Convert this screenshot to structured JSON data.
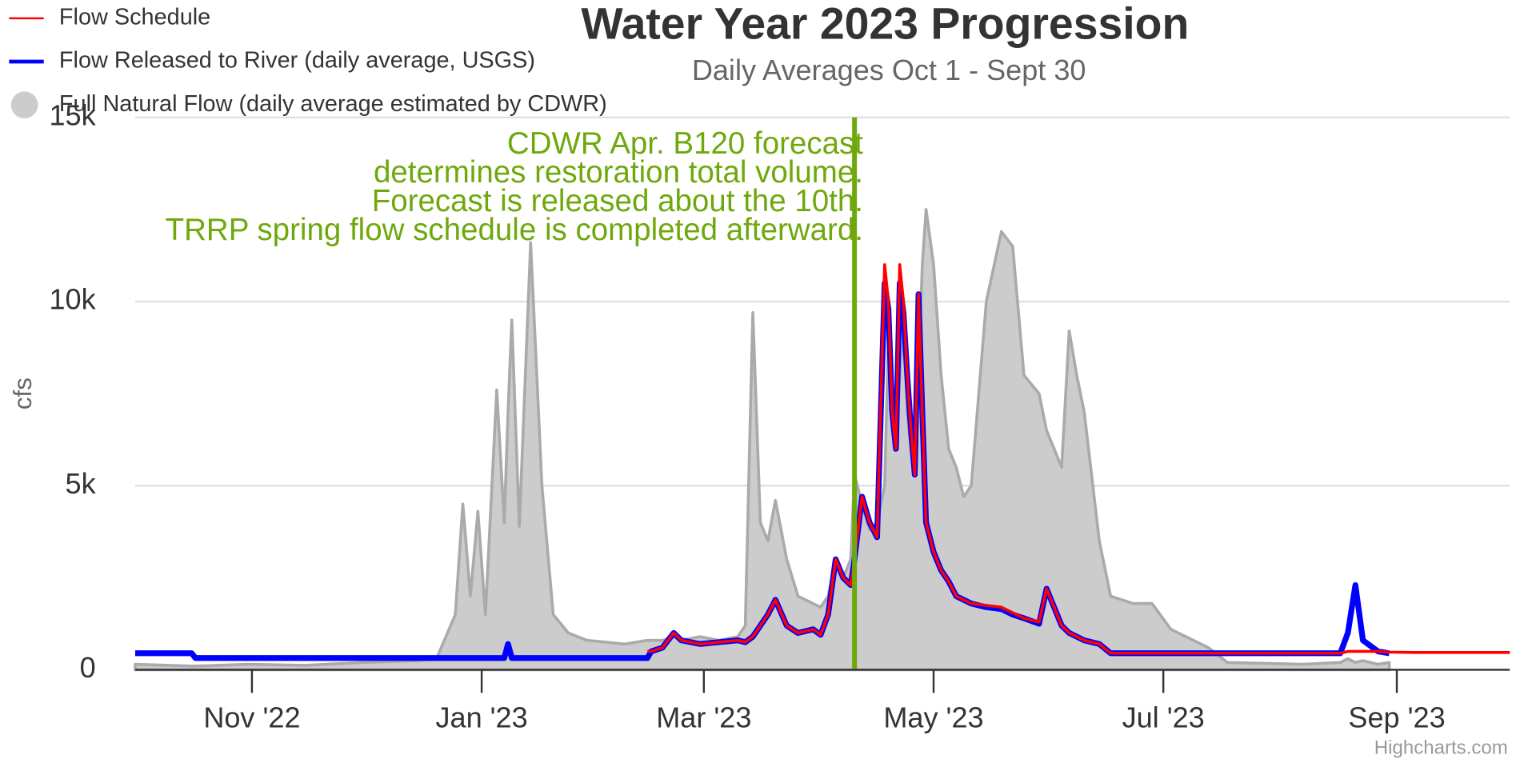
{
  "chart_data": {
    "type": "line",
    "title": "Water Year 2023 Progression",
    "subtitle": "Daily Averages Oct 1 - Sept 30",
    "y_axis_label": "cfs",
    "credits": "Highcharts.com",
    "legend_position": "top-left",
    "grid": true,
    "xlim": [
      0,
      365
    ],
    "xticks": [
      {
        "value": 31,
        "label": "Nov '22"
      },
      {
        "value": 92,
        "label": "Jan '23"
      },
      {
        "value": 151,
        "label": "Mar '23"
      },
      {
        "value": 212,
        "label": "May '23"
      },
      {
        "value": 273,
        "label": "Jul '23"
      },
      {
        "value": 335,
        "label": "Sep '23"
      }
    ],
    "ylim": [
      0,
      15000
    ],
    "yticks": [
      0,
      {
        "value": 5000,
        "label": "5k"
      },
      {
        "value": 10000,
        "label": "10k"
      },
      {
        "value": 15000,
        "label": "15k"
      }
    ],
    "plot_lines": [
      {
        "value": 191,
        "color": "#6fa80d",
        "label": [
          "CDWR Apr. B120 forecast",
          "determines restoration total volume.",
          "Forecast is released about the 10th.",
          "TRRP spring flow schedule is completed afterward."
        ]
      }
    ],
    "x": [
      0,
      15,
      16,
      30,
      45,
      60,
      75,
      80,
      85,
      87,
      89,
      91,
      93,
      96,
      98,
      99,
      100,
      102,
      105,
      108,
      111,
      115,
      120,
      130,
      136,
      137,
      140,
      143,
      145,
      150,
      155,
      160,
      162,
      164,
      166,
      168,
      170,
      173,
      176,
      180,
      182,
      184,
      186,
      188,
      190,
      191,
      193,
      195,
      197,
      199,
      200,
      201,
      202,
      203,
      204,
      205,
      206,
      207,
      208,
      209,
      210,
      212,
      214,
      216,
      218,
      220,
      222,
      226,
      230,
      233,
      236,
      240,
      242,
      244,
      246,
      248,
      250,
      252,
      256,
      259,
      265,
      270,
      275,
      285,
      290,
      310,
      320,
      322,
      324,
      326,
      330,
      333,
      340,
      365
    ],
    "series": [
      {
        "name": "Flow Schedule",
        "color": "#ff0000",
        "type": "line",
        "values": [
          null,
          null,
          null,
          null,
          null,
          null,
          null,
          null,
          null,
          null,
          null,
          null,
          null,
          null,
          null,
          null,
          null,
          null,
          null,
          null,
          null,
          null,
          null,
          null,
          500,
          500,
          600,
          1000,
          800,
          700,
          750,
          800,
          750,
          900,
          1200,
          1500,
          1900,
          1200,
          1000,
          1100,
          950,
          1500,
          3000,
          2500,
          2300,
          3000,
          4700,
          4000,
          3600,
          11000,
          10000,
          7000,
          6000,
          11000,
          10000,
          8000,
          6500,
          5300,
          10200,
          7000,
          4000,
          3200,
          2700,
          2400,
          2000,
          1900,
          1800,
          1750,
          1700,
          1550,
          1400,
          1300,
          2200,
          1700,
          1200,
          1000,
          900,
          800,
          700,
          450,
          450,
          450,
          450,
          450,
          450,
          450,
          450,
          500,
          500,
          500,
          500,
          480,
          470,
          470
        ]
      },
      {
        "name": "Flow Released to River (daily average, USGS)",
        "color": "#0000ff",
        "type": "line",
        "values": [
          450,
          450,
          320,
          320,
          320,
          320,
          320,
          320,
          320,
          320,
          320,
          320,
          320,
          320,
          320,
          700,
          320,
          320,
          320,
          320,
          320,
          320,
          320,
          320,
          320,
          500,
          600,
          1000,
          800,
          700,
          750,
          800,
          750,
          900,
          1200,
          1500,
          1900,
          1200,
          1000,
          1100,
          950,
          1500,
          3000,
          2500,
          2300,
          3000,
          4700,
          4000,
          3600,
          10500,
          9800,
          7000,
          6000,
          10500,
          9700,
          8000,
          6500,
          5300,
          10200,
          7000,
          4000,
          3200,
          2700,
          2400,
          2000,
          1900,
          1800,
          1700,
          1650,
          1500,
          1400,
          1250,
          2200,
          1700,
          1200,
          1000,
          900,
          800,
          700,
          450,
          450,
          450,
          450,
          450,
          450,
          450,
          450,
          1000,
          2300,
          800,
          500,
          450,
          null,
          null
        ]
      },
      {
        "name": "Full Natural Flow (daily average estimated by CDWR)",
        "color": "#cccccc",
        "type": "area",
        "values": [
          150,
          100,
          100,
          150,
          120,
          200,
          250,
          300,
          1500,
          4500,
          2000,
          4300,
          1500,
          7600,
          4000,
          7000,
          9500,
          3900,
          11600,
          5000,
          1500,
          1000,
          800,
          700,
          800,
          800,
          800,
          900,
          800,
          900,
          800,
          900,
          1200,
          9700,
          4000,
          3500,
          4600,
          3000,
          2000,
          1800,
          1700,
          2000,
          3000,
          2500,
          3000,
          5300,
          4500,
          3800,
          4000,
          5000,
          9000,
          8000,
          6000,
          8000,
          9500,
          7000,
          6000,
          5500,
          8000,
          11000,
          12500,
          11000,
          8000,
          6000,
          5500,
          4700,
          5000,
          10000,
          11900,
          11500,
          8000,
          7500,
          6500,
          6000,
          5500,
          9200,
          8000,
          7000,
          3500,
          2000,
          1800,
          1800,
          1100,
          600,
          200,
          150,
          200,
          300,
          200,
          250,
          150,
          200,
          null,
          null
        ]
      }
    ]
  }
}
